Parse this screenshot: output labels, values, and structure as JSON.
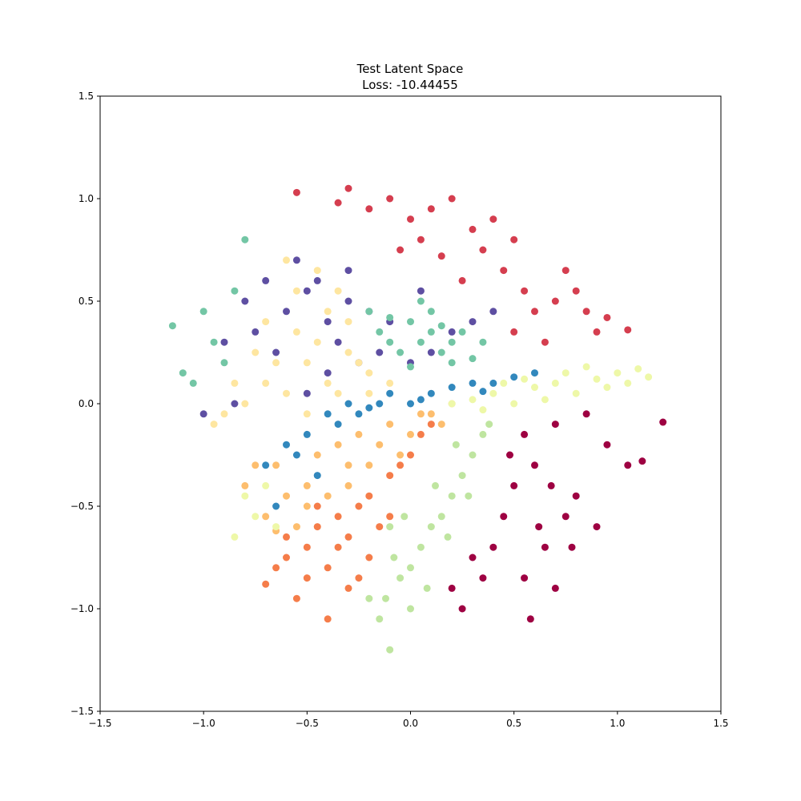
{
  "chart_data": {
    "type": "scatter",
    "title": "Test Latent Space",
    "subtitle": "Loss: -10.44455",
    "xlim": [
      -1.5,
      1.5
    ],
    "ylim": [
      -1.5,
      1.5
    ],
    "xticks": [
      {
        "value": -1.5,
        "label": "−1.5"
      },
      {
        "value": -1.0,
        "label": "−1.0"
      },
      {
        "value": -0.5,
        "label": "−0.5"
      },
      {
        "value": 0,
        "label": "0.0"
      },
      0.5,
      {
        "value": 1.0,
        "label": "1.0"
      },
      1.5
    ],
    "yticks": [
      {
        "value": -1.5,
        "label": "−1.5"
      },
      {
        "value": -1.0,
        "label": "−1.0"
      },
      {
        "value": -0.5,
        "label": "−0.5"
      },
      {
        "value": 0,
        "label": "0.0"
      },
      0.5,
      {
        "value": 1.0,
        "label": "1.0"
      },
      1.5
    ],
    "grid": false,
    "series": [
      {
        "color": "#5e4fa2",
        "x": [
          -0.9,
          -0.8,
          -0.7,
          -0.6,
          -0.5,
          -0.4,
          -0.3,
          -0.2,
          -0.1,
          0.0,
          0.1,
          0.2,
          0.3,
          -0.75,
          -0.65,
          -0.55,
          -0.45,
          -0.35,
          -0.25,
          -0.15,
          -0.5,
          -0.4,
          -0.85,
          -1.0,
          0.4,
          0.05,
          -0.3
        ],
        "y": [
          0.3,
          0.5,
          0.6,
          0.45,
          0.55,
          0.4,
          0.5,
          0.45,
          0.4,
          0.2,
          0.25,
          0.35,
          0.4,
          0.35,
          0.25,
          0.7,
          0.6,
          0.3,
          0.2,
          0.25,
          0.05,
          0.15,
          0.0,
          -0.05,
          0.45,
          0.55,
          0.65
        ]
      },
      {
        "color": "#fee6a0",
        "x": [
          -0.9,
          -0.8,
          -0.7,
          -0.6,
          -0.5,
          -0.4,
          -0.3,
          -0.2,
          -0.1,
          -0.75,
          -0.65,
          -0.55,
          -0.45,
          -0.35,
          -0.25,
          -0.55,
          -0.45,
          -0.85,
          -0.6,
          -0.3,
          -0.4,
          -0.5,
          -0.7,
          -0.2,
          -0.95,
          -0.35
        ],
        "y": [
          -0.05,
          0.0,
          0.1,
          0.05,
          0.2,
          0.1,
          0.25,
          0.15,
          0.1,
          0.25,
          0.2,
          0.35,
          0.3,
          0.05,
          0.2,
          0.55,
          0.65,
          0.1,
          0.7,
          0.4,
          0.45,
          -0.05,
          0.4,
          0.05,
          -0.1,
          0.55
        ]
      },
      {
        "color": "#3288bd",
        "x": [
          -0.7,
          -0.6,
          -0.5,
          -0.45,
          -0.4,
          -0.35,
          -0.3,
          -0.2,
          -0.1,
          0.0,
          0.1,
          0.2,
          0.3,
          0.4,
          0.5,
          0.6,
          -0.55,
          -0.25,
          0.05,
          0.35,
          -0.65,
          -0.15
        ],
        "y": [
          -0.3,
          -0.2,
          -0.15,
          -0.35,
          -0.05,
          -0.1,
          0.0,
          -0.02,
          0.05,
          0.0,
          0.05,
          0.08,
          0.1,
          0.1,
          0.13,
          0.15,
          -0.25,
          -0.05,
          0.02,
          0.06,
          -0.5,
          0.0
        ]
      },
      {
        "color": "#fdbe6e",
        "x": [
          -0.8,
          -0.7,
          -0.65,
          -0.55,
          -0.5,
          -0.45,
          -0.4,
          -0.3,
          -0.25,
          -0.2,
          -0.1,
          0.0,
          0.1,
          0.2,
          -0.6,
          -0.35,
          -0.15,
          0.05,
          -0.75,
          -0.5,
          -0.3,
          -0.05,
          0.15,
          -0.65
        ],
        "y": [
          -0.4,
          -0.55,
          -0.3,
          -0.6,
          -0.4,
          -0.25,
          -0.45,
          -0.3,
          -0.15,
          -0.3,
          -0.1,
          -0.15,
          -0.05,
          0.0,
          -0.45,
          -0.2,
          -0.2,
          -0.05,
          -0.3,
          -0.5,
          -0.4,
          -0.25,
          -0.1,
          -0.62
        ]
      },
      {
        "color": "#eef8a8",
        "x": [
          0.2,
          0.3,
          0.4,
          0.5,
          0.6,
          0.7,
          0.8,
          0.9,
          1.0,
          1.1,
          1.15,
          0.45,
          0.65,
          0.85,
          0.55,
          0.75,
          0.95,
          -0.8,
          -0.75,
          -0.7,
          -0.65,
          -0.85,
          0.35,
          1.05
        ],
        "y": [
          0.0,
          0.02,
          0.05,
          0.0,
          0.08,
          0.1,
          0.05,
          0.12,
          0.15,
          0.17,
          0.13,
          0.1,
          0.02,
          0.18,
          0.12,
          0.15,
          0.08,
          -0.45,
          -0.55,
          -0.4,
          -0.6,
          -0.65,
          -0.03,
          0.1
        ]
      },
      {
        "color": "#f57d4a",
        "x": [
          -0.7,
          -0.65,
          -0.6,
          -0.55,
          -0.5,
          -0.45,
          -0.4,
          -0.35,
          -0.3,
          -0.25,
          -0.2,
          -0.15,
          -0.1,
          -0.05,
          0.0,
          0.05,
          0.1,
          -0.4,
          -0.3,
          -0.2,
          -0.5,
          -0.35,
          -0.6,
          -0.45,
          -0.25,
          -0.1
        ],
        "y": [
          -0.88,
          -0.8,
          -0.75,
          -0.95,
          -0.7,
          -0.6,
          -0.8,
          -0.55,
          -0.65,
          -0.5,
          -0.45,
          -0.6,
          -0.35,
          -0.3,
          -0.25,
          -0.15,
          -0.1,
          -1.05,
          -0.9,
          -0.75,
          -0.85,
          -0.7,
          -0.65,
          -0.5,
          -0.85,
          -0.55
        ]
      },
      {
        "color": "#bfe5a0",
        "x": [
          -0.15,
          -0.12,
          -0.1,
          -0.05,
          0.0,
          0.05,
          0.1,
          0.15,
          0.2,
          0.25,
          0.3,
          0.35,
          0.38,
          -0.08,
          0.0,
          0.08,
          0.18,
          0.28,
          -0.2,
          -0.1,
          0.12,
          0.22,
          -0.03
        ],
        "y": [
          -1.05,
          -0.95,
          -1.2,
          -0.85,
          -0.8,
          -0.7,
          -0.6,
          -0.55,
          -0.45,
          -0.35,
          -0.25,
          -0.15,
          -0.1,
          -0.75,
          -1.0,
          -0.9,
          -0.65,
          -0.45,
          -0.95,
          -0.6,
          -0.4,
          -0.2,
          -0.55
        ]
      },
      {
        "color": "#73c6a5",
        "x": [
          -0.15,
          -0.1,
          -0.05,
          0.0,
          0.05,
          0.1,
          0.15,
          0.2,
          0.25,
          0.3,
          0.35,
          -0.2,
          0.0,
          0.1,
          0.2,
          0.05,
          -0.1,
          0.15,
          -1.15,
          -1.1,
          -1.0,
          -0.95,
          -0.85,
          -0.8,
          -0.9,
          -1.05
        ],
        "y": [
          0.35,
          0.3,
          0.25,
          0.4,
          0.3,
          0.35,
          0.25,
          0.3,
          0.35,
          0.22,
          0.3,
          0.45,
          0.18,
          0.45,
          0.2,
          0.5,
          0.42,
          0.38,
          0.38,
          0.15,
          0.45,
          0.3,
          0.55,
          0.8,
          0.2,
          0.1
        ]
      },
      {
        "color": "#9e0142",
        "x": [
          0.55,
          0.7,
          0.85,
          0.95,
          1.05,
          1.22,
          1.12,
          0.6,
          0.5,
          0.45,
          0.4,
          0.35,
          0.55,
          0.65,
          0.75,
          0.8,
          0.62,
          0.48,
          0.7,
          0.9,
          0.3,
          0.2,
          0.25,
          0.78,
          0.58,
          0.68
        ],
        "y": [
          -0.15,
          -0.1,
          -0.05,
          -0.2,
          -0.3,
          -0.09,
          -0.28,
          -0.3,
          -0.4,
          -0.55,
          -0.7,
          -0.85,
          -0.85,
          -0.7,
          -0.55,
          -0.45,
          -0.6,
          -0.25,
          -0.9,
          -0.6,
          -0.75,
          -0.9,
          -1.0,
          -0.7,
          -1.05,
          -0.4
        ]
      },
      {
        "color": "#d53e4f",
        "x": [
          -0.55,
          -0.35,
          -0.3,
          -0.2,
          -0.1,
          0.0,
          0.1,
          0.2,
          0.3,
          0.05,
          0.15,
          0.35,
          0.45,
          0.5,
          0.55,
          0.6,
          0.7,
          0.75,
          0.85,
          0.9,
          0.95,
          1.05,
          0.65,
          0.4,
          0.25,
          -0.05,
          0.5,
          0.8
        ],
        "y": [
          1.03,
          0.98,
          1.05,
          0.95,
          1.0,
          0.9,
          0.95,
          1.0,
          0.85,
          0.8,
          0.72,
          0.75,
          0.65,
          0.8,
          0.55,
          0.45,
          0.5,
          0.65,
          0.45,
          0.35,
          0.42,
          0.36,
          0.3,
          0.9,
          0.6,
          0.75,
          0.35,
          0.55
        ]
      }
    ]
  }
}
